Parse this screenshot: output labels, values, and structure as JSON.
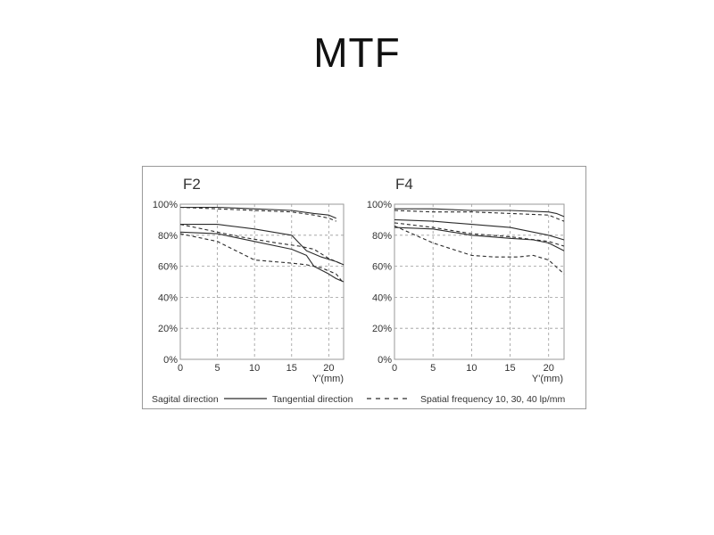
{
  "title": "MTF",
  "legend": {
    "sagittal": "Sagital direction",
    "tangential": "Tangential direction",
    "frequency": "Spatial frequency 10, 30, 40 lp/mm"
  },
  "colors": {
    "line": "#2b2b2b",
    "grid": "#9a9a9a",
    "frame": "#9a9a9a"
  },
  "chart_data": [
    {
      "type": "line",
      "title": "F2",
      "xlabel": "Y'(mm)",
      "xlim": [
        0,
        22
      ],
      "ylim": [
        0,
        100
      ],
      "xticks": [
        0,
        5,
        10,
        15,
        20
      ],
      "yticks": [
        0,
        20,
        40,
        60,
        80,
        100
      ],
      "ytick_labels": [
        "0%",
        "20%",
        "40%",
        "60%",
        "80%",
        "100%"
      ],
      "grid": true,
      "series": [
        {
          "style": "solid",
          "points": [
            [
              0,
              98
            ],
            [
              5,
              98
            ],
            [
              10,
              97
            ],
            [
              15,
              96
            ],
            [
              18,
              94
            ],
            [
              20,
              93
            ],
            [
              21,
              91
            ]
          ]
        },
        {
          "style": "dashed",
          "points": [
            [
              0,
              98
            ],
            [
              5,
              97
            ],
            [
              10,
              96
            ],
            [
              15,
              95
            ],
            [
              18,
              93
            ],
            [
              20,
              91
            ],
            [
              21,
              89
            ]
          ]
        },
        {
          "style": "solid",
          "points": [
            [
              0,
              87
            ],
            [
              5,
              87
            ],
            [
              10,
              84
            ],
            [
              15,
              80
            ],
            [
              17,
              70
            ],
            [
              19,
              66
            ],
            [
              21,
              63
            ],
            [
              22,
              61
            ]
          ]
        },
        {
          "style": "dashed",
          "points": [
            [
              0,
              87
            ],
            [
              3,
              84
            ],
            [
              8,
              79
            ],
            [
              13,
              75
            ],
            [
              16,
              73
            ],
            [
              18,
              71
            ],
            [
              20,
              65
            ],
            [
              22,
              61
            ]
          ]
        },
        {
          "style": "solid",
          "points": [
            [
              0,
              82
            ],
            [
              5,
              81
            ],
            [
              10,
              76
            ],
            [
              15,
              71
            ],
            [
              17,
              67
            ],
            [
              18,
              60
            ],
            [
              20,
              55
            ],
            [
              21,
              52
            ],
            [
              22,
              50
            ]
          ]
        },
        {
          "style": "dashed",
          "points": [
            [
              0,
              81
            ],
            [
              5,
              76
            ],
            [
              10,
              64
            ],
            [
              15,
              62
            ],
            [
              17,
              61
            ],
            [
              19,
              59
            ],
            [
              21,
              55
            ],
            [
              22,
              49
            ]
          ]
        }
      ]
    },
    {
      "type": "line",
      "title": "F4",
      "xlabel": "Y'(mm)",
      "xlim": [
        0,
        22
      ],
      "ylim": [
        0,
        100
      ],
      "xticks": [
        0,
        5,
        10,
        15,
        20
      ],
      "yticks": [
        0,
        20,
        40,
        60,
        80,
        100
      ],
      "ytick_labels": [
        "0%",
        "20%",
        "40%",
        "60%",
        "80%",
        "100%"
      ],
      "grid": true,
      "series": [
        {
          "style": "solid",
          "points": [
            [
              0,
              97
            ],
            [
              5,
              97
            ],
            [
              10,
              96
            ],
            [
              15,
              96
            ],
            [
              20,
              95
            ],
            [
              21,
              94
            ],
            [
              22,
              92
            ]
          ]
        },
        {
          "style": "dashed",
          "points": [
            [
              0,
              96
            ],
            [
              5,
              95
            ],
            [
              10,
              95
            ],
            [
              15,
              94
            ],
            [
              20,
              93
            ],
            [
              21,
              91
            ],
            [
              22,
              89
            ]
          ]
        },
        {
          "style": "solid",
          "points": [
            [
              0,
              90
            ],
            [
              5,
              89
            ],
            [
              10,
              87
            ],
            [
              15,
              85
            ],
            [
              20,
              80
            ],
            [
              22,
              77
            ]
          ]
        },
        {
          "style": "dashed",
          "points": [
            [
              0,
              88
            ],
            [
              5,
              85
            ],
            [
              10,
              81
            ],
            [
              15,
              79
            ],
            [
              20,
              76
            ],
            [
              22,
              73
            ]
          ]
        },
        {
          "style": "solid",
          "points": [
            [
              0,
              85
            ],
            [
              5,
              84
            ],
            [
              10,
              80
            ],
            [
              15,
              78
            ],
            [
              18,
              77
            ],
            [
              20,
              75
            ],
            [
              22,
              70
            ]
          ]
        },
        {
          "style": "dashed",
          "points": [
            [
              0,
              86
            ],
            [
              5,
              75
            ],
            [
              10,
              67
            ],
            [
              13,
              66
            ],
            [
              16,
              66
            ],
            [
              18,
              67
            ],
            [
              20,
              64
            ],
            [
              22,
              55
            ]
          ]
        }
      ]
    }
  ]
}
